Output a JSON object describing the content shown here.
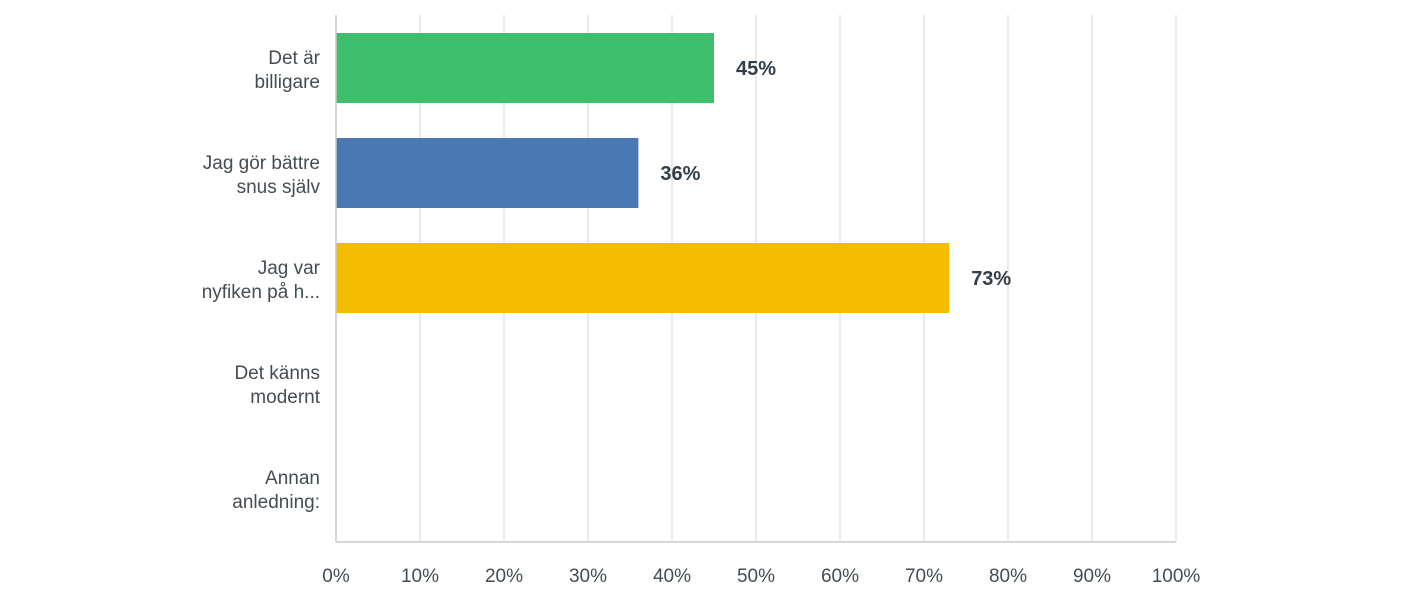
{
  "chart_data": {
    "type": "bar",
    "orientation": "horizontal",
    "title": "",
    "xlabel": "",
    "ylabel": "",
    "xlim": [
      0,
      100
    ],
    "grid": true,
    "categories": [
      [
        "Det är",
        "billigare"
      ],
      [
        "Jag gör bättre",
        "snus själv"
      ],
      [
        "Jag var",
        "nyfiken på h..."
      ],
      [
        "Det känns",
        "modernt"
      ],
      [
        "Annan",
        "anledning:"
      ]
    ],
    "values": [
      45,
      36,
      73,
      0,
      0
    ],
    "value_labels": [
      "45%",
      "36%",
      "73%",
      "",
      ""
    ],
    "colors": [
      "#3fbf6b",
      "#4a78b3",
      "#f5bd00",
      "#f07050",
      "#8e6bb8"
    ],
    "ticks": [
      "0%",
      "10%",
      "20%",
      "30%",
      "40%",
      "50%",
      "60%",
      "70%",
      "80%",
      "90%",
      "100%"
    ]
  }
}
